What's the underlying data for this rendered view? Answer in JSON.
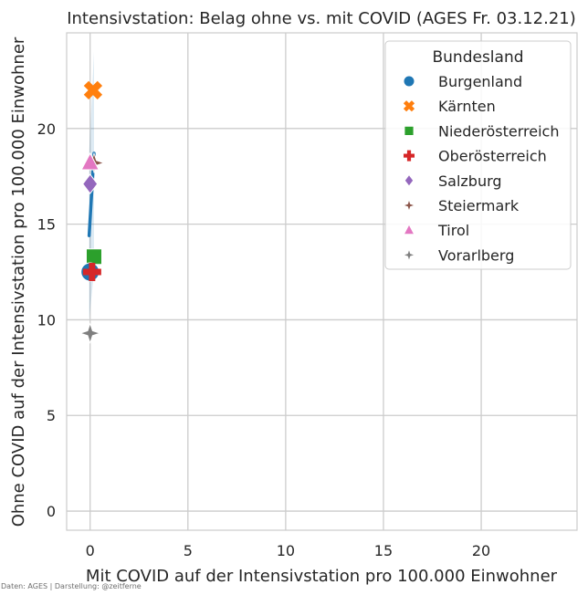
{
  "chart_data": {
    "type": "scatter",
    "title": "Intensivstation: Belag ohne vs. mit COVID (AGES Fr. 03.12.21)",
    "xlabel": "Mit COVID auf der Intensivstation pro 100.000 Einwohner",
    "ylabel": "Ohne COVID auf der Intensivstation pro 100.000 Einwohner",
    "xlim": [
      -1.2,
      24.9
    ],
    "ylim": [
      -1.0,
      25.0
    ],
    "xticks": [
      0,
      5,
      10,
      15,
      20
    ],
    "yticks": [
      0,
      5,
      10,
      15,
      20
    ],
    "grid": true,
    "legend": {
      "title": "Bundesland",
      "position": "top-right"
    },
    "regression": {
      "x": [
        -0.05,
        0.2
      ],
      "y": [
        14.4,
        18.7
      ],
      "ci_y_low": [
        10.0,
        12.5
      ],
      "ci_y_high": [
        18.8,
        24.0
      ]
    },
    "series": [
      {
        "name": "Burgenland",
        "marker": "circle",
        "color": "#1f77b4",
        "x": 0.0,
        "y": 12.5
      },
      {
        "name": "Kärnten",
        "marker": "x",
        "color": "#ff7f0e",
        "x": 0.15,
        "y": 22.0
      },
      {
        "name": "Niederösterreich",
        "marker": "square",
        "color": "#2ca02c",
        "x": 0.2,
        "y": 13.3
      },
      {
        "name": "Oberösterreich",
        "marker": "plus",
        "color": "#d62728",
        "x": 0.1,
        "y": 12.5
      },
      {
        "name": "Salzburg",
        "marker": "diamond",
        "color": "#9467bd",
        "x": 0.0,
        "y": 17.1
      },
      {
        "name": "Steiermark",
        "marker": "star4",
        "color": "#8c564b",
        "x": 0.2,
        "y": 18.2
      },
      {
        "name": "Tirol",
        "marker": "triangle",
        "color": "#e377c2",
        "x": 0.0,
        "y": 18.2
      },
      {
        "name": "Vorarlberg",
        "marker": "star4",
        "color": "#7f7f7f",
        "x": 0.0,
        "y": 9.3
      }
    ]
  },
  "credit": "Daten: AGES | Darstellung: @zeitferne"
}
